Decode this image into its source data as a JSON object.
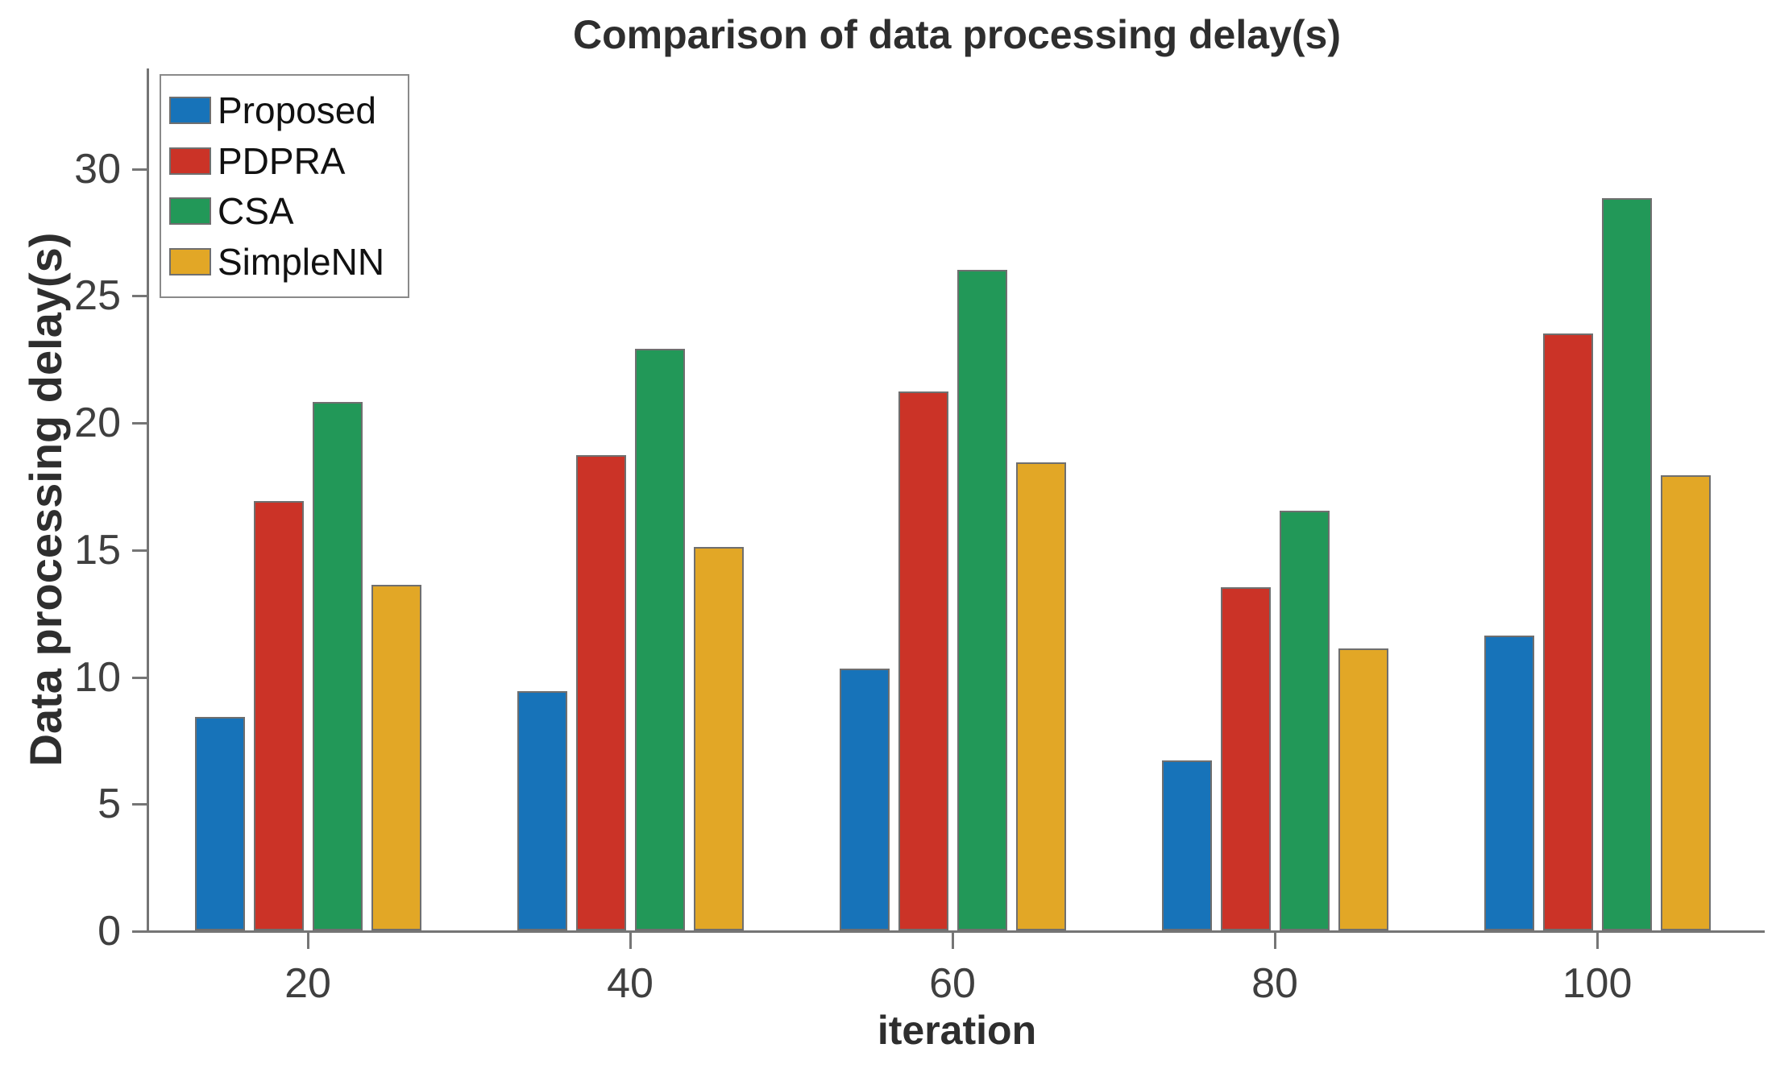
{
  "chart_data": {
    "type": "bar",
    "title": "Comparison of data processing delay(s)",
    "xlabel": "iteration",
    "ylabel": "Data processing delay(s)",
    "categories": [
      20,
      40,
      60,
      80,
      100
    ],
    "series": [
      {
        "name": "Proposed",
        "color": "#1773b9",
        "values": [
          8.4,
          9.4,
          10.3,
          6.7,
          11.6
        ]
      },
      {
        "name": "PDPRA",
        "color": "#cb3327",
        "values": [
          16.9,
          18.7,
          21.2,
          13.5,
          23.5
        ]
      },
      {
        "name": "CSA",
        "color": "#229858",
        "values": [
          20.8,
          22.9,
          26.0,
          16.5,
          28.8
        ]
      },
      {
        "name": "SimpleNN",
        "color": "#e2a726",
        "values": [
          13.6,
          15.1,
          18.4,
          11.1,
          17.9
        ]
      }
    ],
    "yticks": [
      0,
      5,
      10,
      15,
      20,
      25,
      30
    ],
    "ylim": [
      0,
      34
    ],
    "grid": false,
    "legend_position": "upper-left",
    "bar_edge_color": "#6f6f6f",
    "axis_color": "#757575",
    "tick_label_color": "#3f3f3f",
    "text_color": "#2e2e2e"
  }
}
